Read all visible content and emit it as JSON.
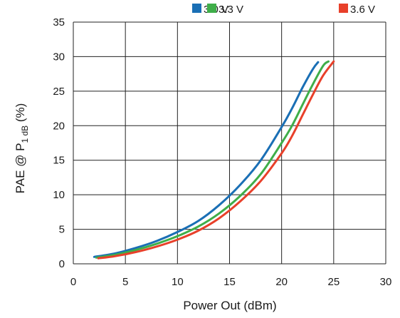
{
  "chart_data": {
    "type": "line",
    "xlabel": "Power Out (dBm)",
    "ylabel": {
      "prefix": "PAE @ P",
      "subscript": "1 dB",
      "suffix": " (%)"
    },
    "xlim": [
      0,
      30
    ],
    "ylim": [
      0,
      35
    ],
    "x_ticks": [
      "0",
      "5",
      "10",
      "15",
      "20",
      "25",
      "30"
    ],
    "y_ticks": [
      "0",
      "5",
      "10",
      "15",
      "20",
      "25",
      "30",
      "35"
    ],
    "grid": true,
    "legend_position": "top",
    "series": [
      {
        "name": "3.0 V",
        "color": "#1a6fb5",
        "points": [
          [
            2,
            1.0
          ],
          [
            4,
            1.5
          ],
          [
            6,
            2.3
          ],
          [
            8,
            3.3
          ],
          [
            10,
            4.6
          ],
          [
            12,
            6.2
          ],
          [
            14,
            8.5
          ],
          [
            16,
            11.4
          ],
          [
            18,
            15.0
          ],
          [
            20,
            19.8
          ],
          [
            21,
            22.5
          ],
          [
            22,
            25.5
          ],
          [
            23,
            28.2
          ],
          [
            23.5,
            29.2
          ]
        ]
      },
      {
        "name": "3.3 V",
        "color": "#3fae49",
        "points": [
          [
            2.2,
            0.9
          ],
          [
            4,
            1.3
          ],
          [
            6,
            2.0
          ],
          [
            8,
            2.9
          ],
          [
            10,
            4.0
          ],
          [
            12,
            5.4
          ],
          [
            14,
            7.3
          ],
          [
            16,
            9.8
          ],
          [
            18,
            13.0
          ],
          [
            20,
            17.5
          ],
          [
            21,
            20.0
          ],
          [
            22,
            23.0
          ],
          [
            23,
            26.0
          ],
          [
            24,
            28.7
          ],
          [
            24.5,
            29.3
          ]
        ]
      },
      {
        "name": "3.6 V",
        "color": "#e8402a",
        "points": [
          [
            2.4,
            0.8
          ],
          [
            4,
            1.1
          ],
          [
            6,
            1.7
          ],
          [
            8,
            2.5
          ],
          [
            10,
            3.5
          ],
          [
            12,
            4.8
          ],
          [
            14,
            6.6
          ],
          [
            16,
            9.0
          ],
          [
            18,
            12.0
          ],
          [
            20,
            16.0
          ],
          [
            21,
            18.5
          ],
          [
            22,
            21.5
          ],
          [
            23,
            24.5
          ],
          [
            24,
            27.3
          ],
          [
            25,
            29.3
          ]
        ]
      }
    ]
  }
}
